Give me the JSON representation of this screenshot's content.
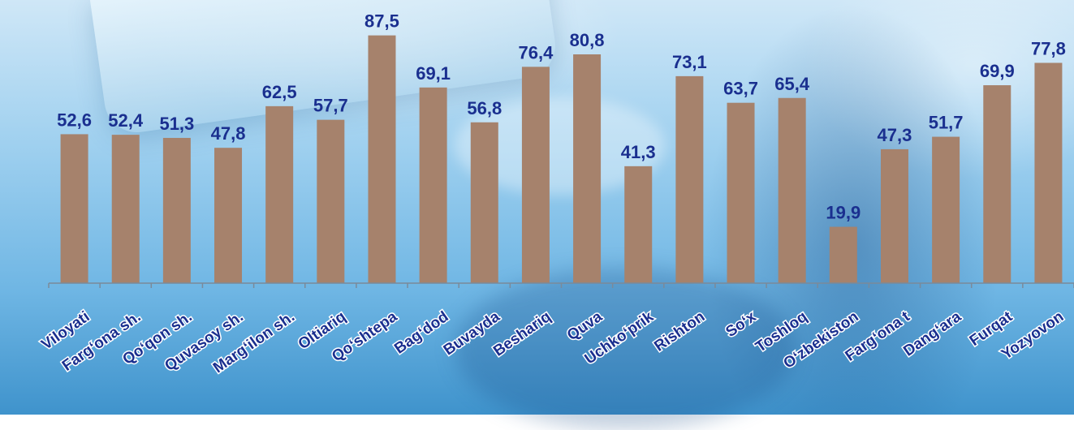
{
  "chart_data": {
    "type": "bar",
    "categories": [
      "Viloyati",
      "Farg‘ona sh.",
      "Qo‘qon sh.",
      "Quvasoy sh.",
      "Marg‘ilon sh.",
      "Oltiariq",
      "Qo‘shtepa",
      "Bag‘dod",
      "Buvayda",
      "Beshariq",
      "Quva",
      "Uchko‘prik",
      "Rishton",
      "So‘x",
      "Toshloq",
      "O‘zbekiston",
      "Farg‘ona t",
      "Dang‘ara",
      "Furqat",
      "Yozyovon"
    ],
    "values": [
      52.6,
      52.4,
      51.3,
      47.8,
      62.5,
      57.7,
      87.5,
      69.1,
      56.8,
      76.4,
      80.8,
      41.3,
      73.1,
      63.7,
      65.4,
      19.9,
      47.3,
      51.7,
      69.9,
      77.8
    ],
    "value_labels": [
      "52,6",
      "52,4",
      "51,3",
      "47,8",
      "62,5",
      "57,7",
      "87,5",
      "69,1",
      "56,8",
      "76,4",
      "80,8",
      "41,3",
      "73,1",
      "63,7",
      "65,4",
      "19,9",
      "47,3",
      "51,7",
      "69,9",
      "77,8"
    ],
    "ylim": [
      0,
      100
    ],
    "grid": false,
    "legend": "none",
    "bar_color": "#a6826c",
    "label_color": "#1a2f8f"
  }
}
